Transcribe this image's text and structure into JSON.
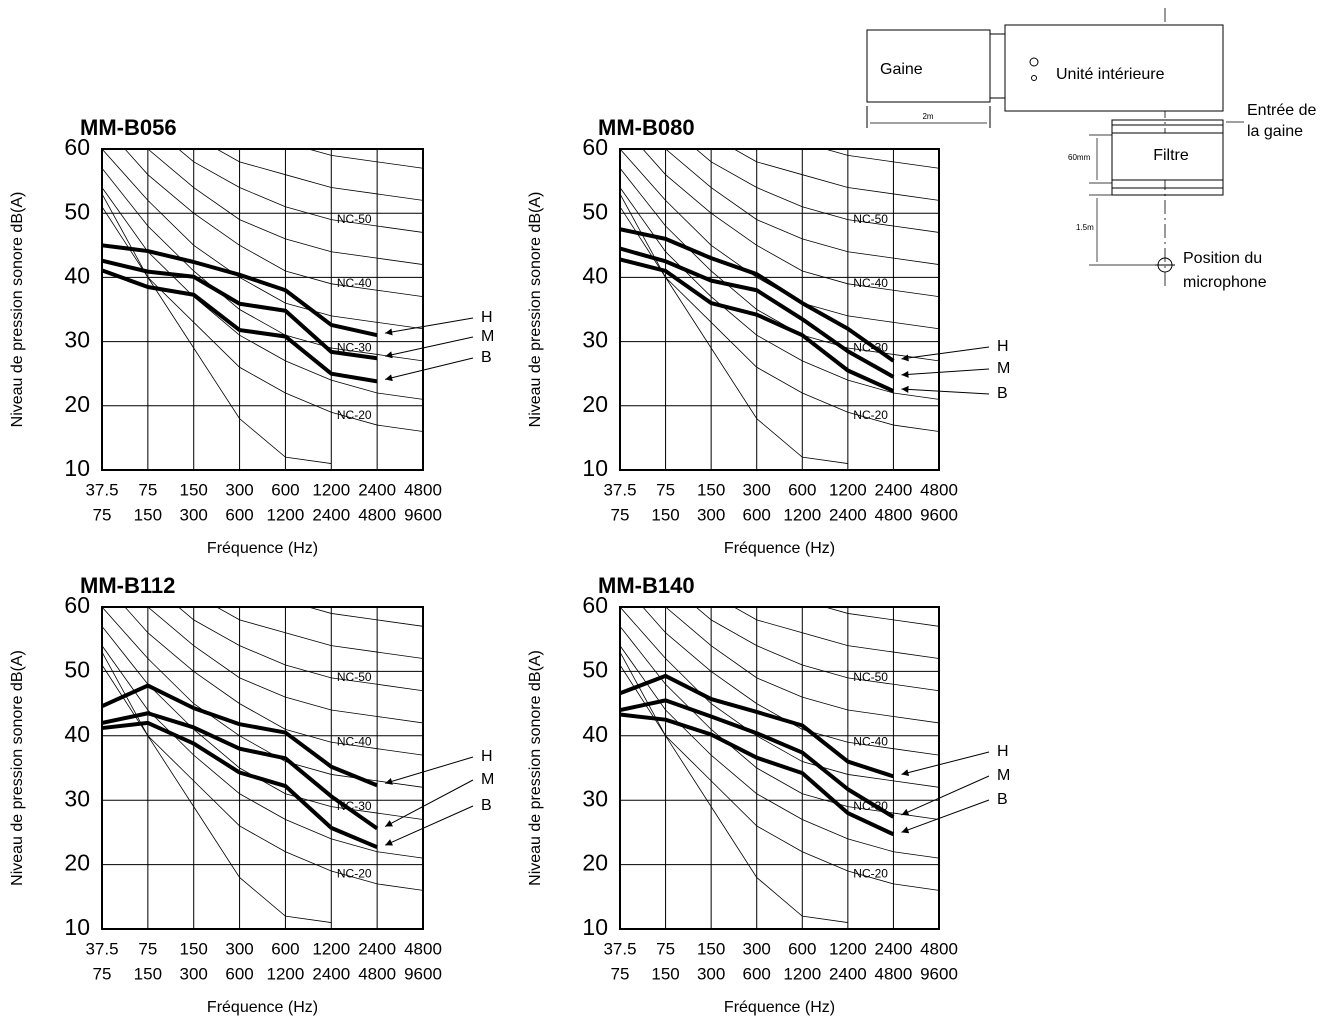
{
  "chart_data": [
    {
      "type": "line",
      "title": "MM-B056",
      "x_label": "Fréquence (Hz)",
      "y_label": "Niveau de pression sonore dB(A)",
      "categories": [
        "37.5",
        "75",
        "150",
        "300",
        "600",
        "1200",
        "2400",
        "4800"
      ],
      "categories_line2": [
        "75",
        "150",
        "300",
        "600",
        "1200",
        "2400",
        "4800",
        "9600"
      ],
      "ylim": [
        10,
        60
      ],
      "yticks": [
        10,
        20,
        30,
        40,
        50,
        60
      ],
      "grid": true,
      "series": [
        {
          "name": "H",
          "color": "#000000",
          "values": [
            45.0,
            44.1,
            42.4,
            40.4,
            38.0,
            32.6,
            31.0,
            null
          ]
        },
        {
          "name": "M",
          "color": "#000000",
          "values": [
            42.6,
            40.9,
            40.1,
            35.9,
            34.8,
            28.4,
            27.4,
            null
          ]
        },
        {
          "name": "B",
          "color": "#000000",
          "values": [
            41.1,
            38.5,
            37.3,
            31.8,
            30.8,
            25.0,
            23.8,
            null
          ]
        }
      ],
      "nc_curves": [
        {
          "label": "NC-20",
          "values": [
            51,
            40,
            33,
            26,
            22,
            19,
            17,
            16
          ]
        },
        {
          "label": null,
          "values": [
            54,
            44,
            37,
            31,
            27,
            24,
            22,
            21
          ]
        },
        {
          "label": "NC-30",
          "values": [
            57,
            48,
            41,
            35,
            31,
            29,
            28,
            27
          ]
        },
        {
          "label": null,
          "values": [
            60,
            52,
            45,
            40,
            36,
            34,
            33,
            32
          ]
        },
        {
          "label": "NC-40",
          "values": [
            64,
            56,
            50,
            45,
            41,
            39,
            38,
            37
          ]
        },
        {
          "label": null,
          "values": [
            67,
            60,
            54,
            49,
            46,
            44,
            43,
            42
          ]
        },
        {
          "label": "NC-50",
          "values": [
            71,
            64,
            58,
            54,
            51,
            49,
            48,
            47
          ]
        },
        {
          "label": null,
          "values": [
            74,
            67,
            62,
            58,
            56,
            54,
            53,
            52
          ]
        },
        {
          "label": null,
          "values": [
            77,
            71,
            67,
            63,
            61,
            59,
            58,
            57
          ]
        },
        {
          "label": null,
          "values": [
            80,
            75,
            71,
            68,
            66,
            64,
            63,
            62
          ]
        },
        {
          "label": null,
          "values": [
            53,
            40,
            29,
            18,
            12,
            11,
            null,
            null
          ]
        }
      ]
    },
    {
      "type": "line",
      "title": "MM-B080",
      "x_label": "Fréquence (Hz)",
      "y_label": "Niveau de pression sonore dB(A)",
      "categories": [
        "37.5",
        "75",
        "150",
        "300",
        "600",
        "1200",
        "2400",
        "4800"
      ],
      "categories_line2": [
        "75",
        "150",
        "300",
        "600",
        "1200",
        "2400",
        "4800",
        "9600"
      ],
      "ylim": [
        10,
        60
      ],
      "yticks": [
        10,
        20,
        30,
        40,
        50,
        60
      ],
      "grid": true,
      "series": [
        {
          "name": "H",
          "color": "#000000",
          "values": [
            47.5,
            46.0,
            43.0,
            40.5,
            36.0,
            32.0,
            27.0,
            null
          ]
        },
        {
          "name": "M",
          "color": "#000000",
          "values": [
            44.5,
            42.5,
            39.5,
            38.0,
            33.5,
            28.5,
            24.5,
            null
          ]
        },
        {
          "name": "B",
          "color": "#000000",
          "values": [
            42.8,
            41.0,
            36.0,
            34.2,
            31.0,
            25.5,
            22.3,
            null
          ]
        }
      ],
      "nc_curves": [
        {
          "label": "NC-20",
          "values": [
            51,
            40,
            33,
            26,
            22,
            19,
            17,
            16
          ]
        },
        {
          "label": null,
          "values": [
            54,
            44,
            37,
            31,
            27,
            24,
            22,
            21
          ]
        },
        {
          "label": "NC-30",
          "values": [
            57,
            48,
            41,
            35,
            31,
            29,
            28,
            27
          ]
        },
        {
          "label": null,
          "values": [
            60,
            52,
            45,
            40,
            36,
            34,
            33,
            32
          ]
        },
        {
          "label": "NC-40",
          "values": [
            64,
            56,
            50,
            45,
            41,
            39,
            38,
            37
          ]
        },
        {
          "label": null,
          "values": [
            67,
            60,
            54,
            49,
            46,
            44,
            43,
            42
          ]
        },
        {
          "label": "NC-50",
          "values": [
            71,
            64,
            58,
            54,
            51,
            49,
            48,
            47
          ]
        },
        {
          "label": null,
          "values": [
            74,
            67,
            62,
            58,
            56,
            54,
            53,
            52
          ]
        },
        {
          "label": null,
          "values": [
            77,
            71,
            67,
            63,
            61,
            59,
            58,
            57
          ]
        },
        {
          "label": null,
          "values": [
            80,
            75,
            71,
            68,
            66,
            64,
            63,
            62
          ]
        },
        {
          "label": null,
          "values": [
            53,
            40,
            29,
            18,
            12,
            11,
            null,
            null
          ]
        }
      ]
    },
    {
      "type": "line",
      "title": "MM-B112",
      "x_label": "Fréquence (Hz)",
      "y_label": "Niveau de pression sonore dB(A)",
      "categories": [
        "37.5",
        "75",
        "150",
        "300",
        "600",
        "1200",
        "2400",
        "4800"
      ],
      "categories_line2": [
        "75",
        "150",
        "300",
        "600",
        "1200",
        "2400",
        "4800",
        "9600"
      ],
      "ylim": [
        10,
        60
      ],
      "yticks": [
        10,
        20,
        30,
        40,
        50,
        60
      ],
      "grid": true,
      "series": [
        {
          "name": "H",
          "color": "#000000",
          "values": [
            44.6,
            47.8,
            44.3,
            41.8,
            40.5,
            35.2,
            32.3,
            null
          ]
        },
        {
          "name": "M",
          "color": "#000000",
          "values": [
            42.0,
            43.5,
            41.3,
            38.0,
            36.5,
            30.6,
            25.6,
            null
          ]
        },
        {
          "name": "B",
          "color": "#000000",
          "values": [
            41.2,
            42.0,
            38.8,
            34.3,
            32.2,
            25.7,
            22.7,
            null
          ]
        }
      ],
      "nc_curves": [
        {
          "label": "NC-20",
          "values": [
            51,
            40,
            33,
            26,
            22,
            19,
            17,
            16
          ]
        },
        {
          "label": null,
          "values": [
            54,
            44,
            37,
            31,
            27,
            24,
            22,
            21
          ]
        },
        {
          "label": "NC-30",
          "values": [
            57,
            48,
            41,
            35,
            31,
            29,
            28,
            27
          ]
        },
        {
          "label": null,
          "values": [
            60,
            52,
            45,
            40,
            36,
            34,
            33,
            32
          ]
        },
        {
          "label": "NC-40",
          "values": [
            64,
            56,
            50,
            45,
            41,
            39,
            38,
            37
          ]
        },
        {
          "label": null,
          "values": [
            67,
            60,
            54,
            49,
            46,
            44,
            43,
            42
          ]
        },
        {
          "label": "NC-50",
          "values": [
            71,
            64,
            58,
            54,
            51,
            49,
            48,
            47
          ]
        },
        {
          "label": null,
          "values": [
            74,
            67,
            62,
            58,
            56,
            54,
            53,
            52
          ]
        },
        {
          "label": null,
          "values": [
            77,
            71,
            67,
            63,
            61,
            59,
            58,
            57
          ]
        },
        {
          "label": null,
          "values": [
            80,
            75,
            71,
            68,
            66,
            64,
            63,
            62
          ]
        },
        {
          "label": null,
          "values": [
            53,
            40,
            29,
            18,
            12,
            11,
            null,
            null
          ]
        }
      ]
    },
    {
      "type": "line",
      "title": "MM-B140",
      "x_label": "Fréquence (Hz)",
      "y_label": "Niveau de pression sonore dB(A)",
      "categories": [
        "37.5",
        "75",
        "150",
        "300",
        "600",
        "1200",
        "2400",
        "4800"
      ],
      "categories_line2": [
        "75",
        "150",
        "300",
        "600",
        "1200",
        "2400",
        "4800",
        "9600"
      ],
      "ylim": [
        10,
        60
      ],
      "yticks": [
        10,
        20,
        30,
        40,
        50,
        60
      ],
      "grid": true,
      "series": [
        {
          "name": "H",
          "color": "#000000",
          "values": [
            46.6,
            49.3,
            45.7,
            43.7,
            41.6,
            36.0,
            33.7,
            null
          ]
        },
        {
          "name": "M",
          "color": "#000000",
          "values": [
            44.0,
            45.5,
            43.0,
            40.4,
            37.4,
            31.7,
            27.4,
            null
          ]
        },
        {
          "name": "B",
          "color": "#000000",
          "values": [
            43.3,
            42.5,
            40.2,
            36.6,
            34.2,
            28.0,
            24.7,
            null
          ]
        }
      ],
      "nc_curves": [
        {
          "label": "NC-20",
          "values": [
            51,
            40,
            33,
            26,
            22,
            19,
            17,
            16
          ]
        },
        {
          "label": null,
          "values": [
            54,
            44,
            37,
            31,
            27,
            24,
            22,
            21
          ]
        },
        {
          "label": "NC-30",
          "values": [
            57,
            48,
            41,
            35,
            31,
            29,
            28,
            27
          ]
        },
        {
          "label": null,
          "values": [
            60,
            52,
            45,
            40,
            36,
            34,
            33,
            32
          ]
        },
        {
          "label": "NC-40",
          "values": [
            64,
            56,
            50,
            45,
            41,
            39,
            38,
            37
          ]
        },
        {
          "label": null,
          "values": [
            67,
            60,
            54,
            49,
            46,
            44,
            43,
            42
          ]
        },
        {
          "label": "NC-50",
          "values": [
            71,
            64,
            58,
            54,
            51,
            49,
            48,
            47
          ]
        },
        {
          "label": null,
          "values": [
            74,
            67,
            62,
            58,
            56,
            54,
            53,
            52
          ]
        },
        {
          "label": null,
          "values": [
            77,
            71,
            67,
            63,
            61,
            59,
            58,
            57
          ]
        },
        {
          "label": null,
          "values": [
            80,
            75,
            71,
            68,
            66,
            64,
            63,
            62
          ]
        },
        {
          "label": null,
          "values": [
            53,
            40,
            29,
            18,
            12,
            11,
            null,
            null
          ]
        }
      ]
    }
  ],
  "diagram": {
    "duct": "Gaine",
    "unit": "Unité intérieure",
    "duct_length": "2m",
    "duct_inlet": [
      "Entrée de",
      "la gaine"
    ],
    "filter_height": "60mm",
    "filter": "Filtre",
    "mic_distance": "1.5m",
    "mic_position": [
      "Position du",
      "microphone"
    ]
  }
}
